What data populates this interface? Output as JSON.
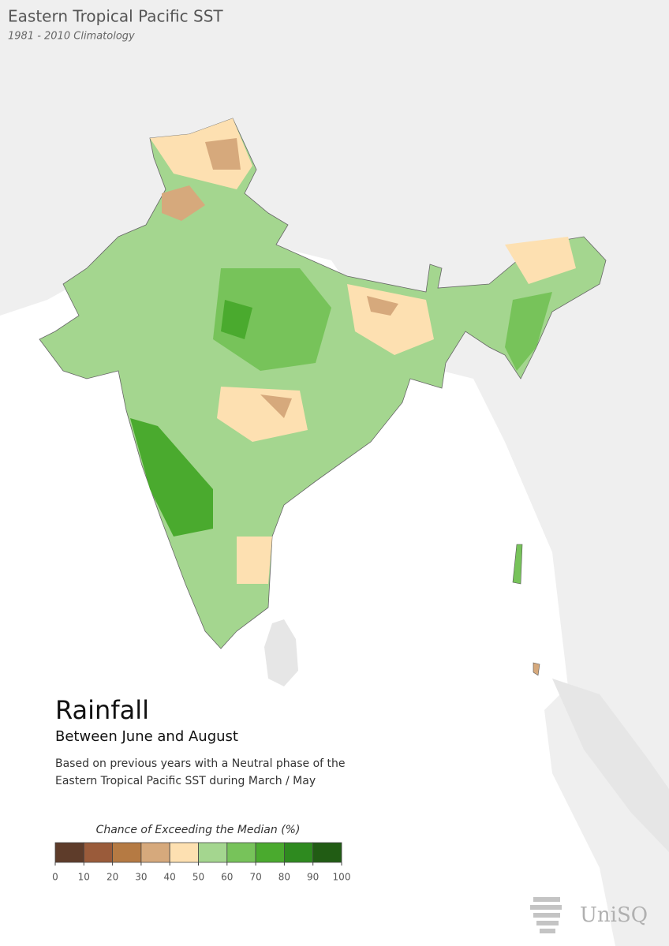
{
  "header": {
    "title": "Eastern Tropical Pacific SST",
    "subtitle": "1981 - 2010 Climatology"
  },
  "panel": {
    "title": "Rainfall",
    "subtitle": "Between June and August",
    "description": [
      "Based on previous years with a Neutral phase of the",
      "Eastern Tropical Pacific SST during March / May"
    ]
  },
  "legend": {
    "title": "Chance of Exceeding the Median (%)",
    "ticks": [
      0,
      10,
      20,
      30,
      40,
      50,
      60,
      70,
      80,
      90,
      100
    ],
    "colors": [
      "#5e3c2a",
      "#9a5b3a",
      "#b57a43",
      "#d6a97c",
      "#fde0b1",
      "#a4d68f",
      "#77c35a",
      "#4aaa2e",
      "#2e8a1f",
      "#215c14"
    ]
  },
  "logo": "UniSQ"
}
